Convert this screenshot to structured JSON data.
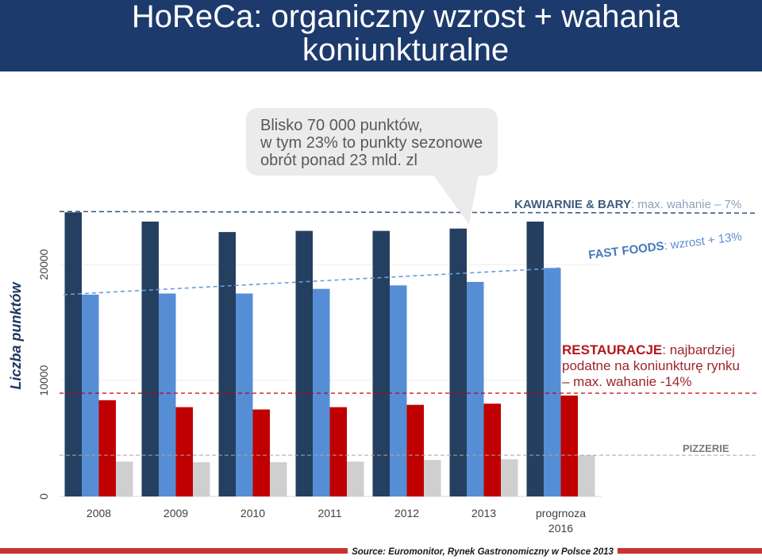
{
  "header": {
    "title": "HoReCa: organiczny wzrost + wahania koniunkturalne"
  },
  "callout": {
    "lines": [
      "Blisko 70 000 punktów,",
      "w tym 23% to punkty sezonowe",
      "obrót ponad 23 mld. zl"
    ]
  },
  "chart_data": {
    "type": "bar",
    "categories": [
      "2008",
      "2009",
      "2010",
      "2011",
      "2012",
      "2013",
      "progrnoza 2016"
    ],
    "series": [
      {
        "name": "KAWIARNIE & BARY",
        "color": "#243f60",
        "values": [
          24500,
          23700,
          22800,
          22900,
          22900,
          23100,
          23700
        ]
      },
      {
        "name": "FAST FOODS",
        "color": "#558ed5",
        "values": [
          17400,
          17500,
          17500,
          17900,
          18200,
          18500,
          19700
        ]
      },
      {
        "name": "RESTAURACJE",
        "color": "#c00000",
        "values": [
          8300,
          7700,
          7500,
          7700,
          7900,
          8000,
          8700
        ]
      },
      {
        "name": "PIZZERIE",
        "color": "#cfcfcf",
        "values": [
          3000,
          2950,
          2950,
          3000,
          3150,
          3200,
          3550
        ]
      }
    ],
    "ylabel": "Liczba punktów",
    "yticks": [
      0,
      10000,
      20000
    ],
    "ylim": [
      0,
      25000
    ],
    "grid": true,
    "annotations": [
      {
        "text": ": max. wahanie – 7%"
      },
      {
        "text": ": wzrost + 13%"
      },
      {
        "lines": [
          ": najbardziej",
          "podatne na koniunkturę rynku",
          "– max. wahanie -14%"
        ]
      }
    ]
  },
  "source": "Source: Euromonitor, Rynek Gastronomiczny w Polsce 2013"
}
